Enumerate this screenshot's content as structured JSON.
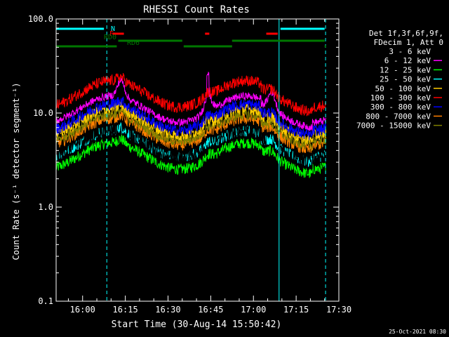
{
  "chart_data": {
    "type": "line",
    "title": "RHESSI Count Rates",
    "xlabel": "Start Time (30-Aug-14 15:50:42)",
    "ylabel": "Count Rate (s⁻¹ detector segment⁻¹)",
    "yscale": "log",
    "ylim": [
      0.1,
      100.0
    ],
    "xlim": [
      "15:50:42",
      "17:30:00"
    ],
    "x_ticks": [
      "16:00",
      "16:15",
      "16:30",
      "16:45",
      "17:00",
      "17:15",
      "17:30"
    ],
    "y_ticks": [
      "0.1",
      "1.0",
      "10.0",
      "100.0"
    ],
    "grid": false,
    "legend_header": [
      "Det 1f,3f,6f,9f,",
      "FDecim 1, Att 0"
    ],
    "legend_position": "right",
    "timestamp": "25-Oct-2021 08:30",
    "series": [
      {
        "name": "3 - 6 keV",
        "color": "#000000",
        "base": 4.8
      },
      {
        "name": "6 - 12 keV",
        "color": "#ff00ff",
        "base": 11.0
      },
      {
        "name": "12 - 25 keV",
        "color": "#00ff00",
        "base": 3.5
      },
      {
        "name": "25 - 50 keV",
        "color": "#00ffff",
        "base": 4.7
      },
      {
        "name": "50 - 100 keV",
        "color": "#ffcc00",
        "base": 8.0
      },
      {
        "name": "100 - 300 keV",
        "color": "#ff0000",
        "base": 16.0
      },
      {
        "name": "300 - 800 keV",
        "color": "#0000ff",
        "base": 9.0
      },
      {
        "name": "800 - 7000 keV",
        "color": "#ff8000",
        "base": 6.3
      },
      {
        "name": "7000 - 15000 keV",
        "color": "#808000",
        "base": 7.0
      }
    ],
    "flags": [
      {
        "label": "N",
        "color": "#00ffff",
        "segments": [
          [
            "15:50:42",
            "16:07:30"
          ],
          [
            "17:09:30",
            "17:25:00"
          ]
        ]
      },
      {
        "label": "F",
        "color": "#ff0000",
        "segments": [
          [
            "16:10:30",
            "16:14:30"
          ],
          [
            "16:43:00",
            "16:44:30"
          ],
          [
            "17:04:30",
            "17:08:30"
          ]
        ]
      },
      {
        "label": "RD0",
        "color": "#007700",
        "segments": [
          [
            "16:12:30",
            "16:35:00"
          ],
          [
            "16:52:30",
            "17:25:00"
          ]
        ]
      },
      {
        "label": "RD6",
        "color": "#007700",
        "segments": [
          [
            "15:50:42",
            "16:12:00"
          ],
          [
            "16:35:30",
            "16:52:30"
          ],
          [
            "17:25:00",
            "17:25:30"
          ]
        ]
      }
    ],
    "vlines": [
      {
        "color": "#00ffff",
        "style": "solid",
        "time": "15:50:42"
      },
      {
        "color": "#00ffff",
        "style": "dashed",
        "time": "16:08:30"
      },
      {
        "color": "#00ffff",
        "style": "solid",
        "time": "17:09:00"
      },
      {
        "color": "#00ffff",
        "style": "dashed",
        "time": "17:25:20"
      }
    ]
  }
}
